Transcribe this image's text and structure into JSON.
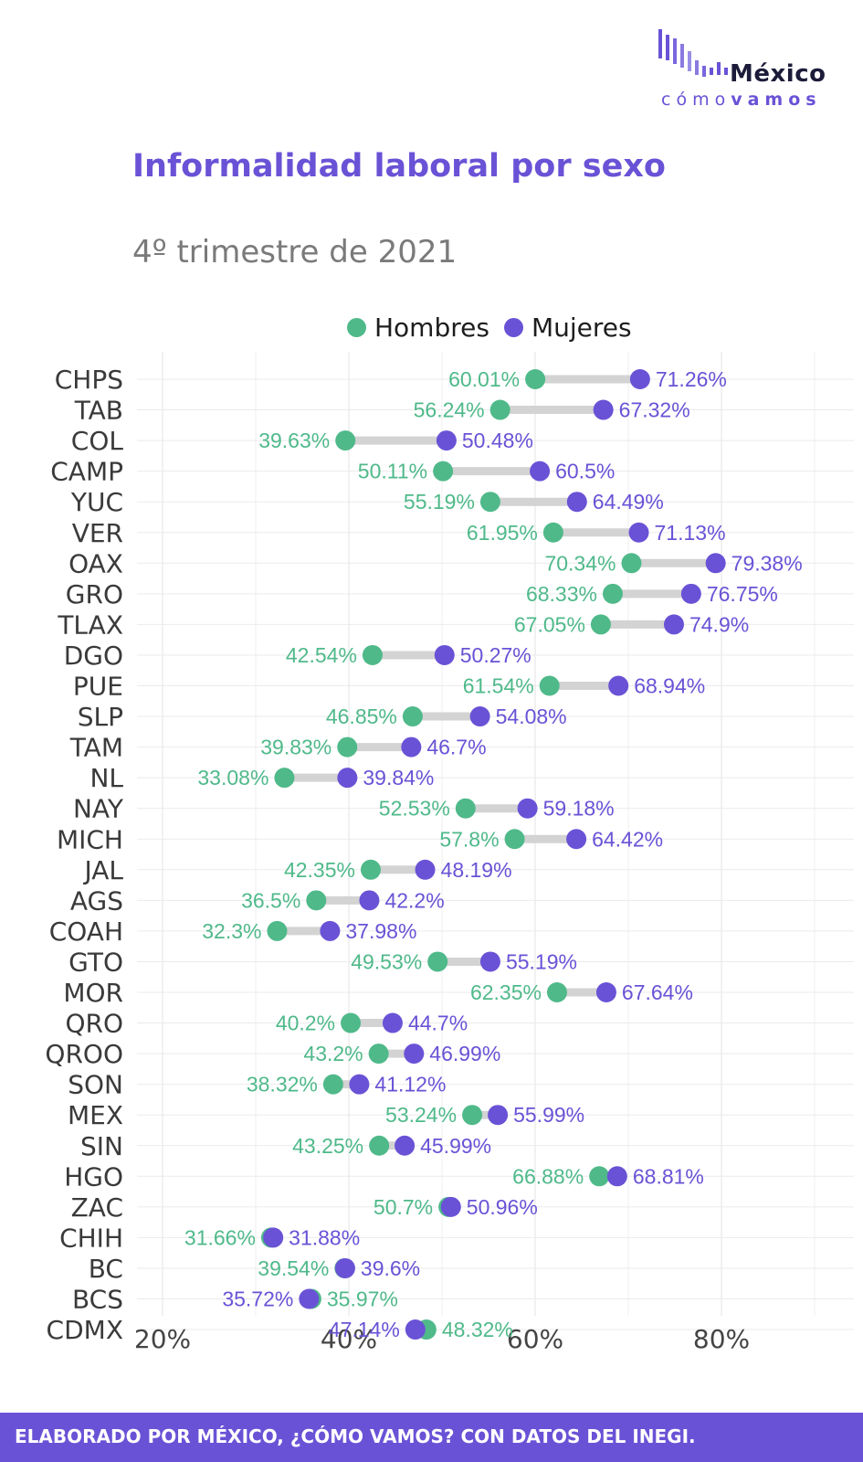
{
  "logo": {
    "name": "México",
    "sub_light": "cómo",
    "sub_bold": "vamos"
  },
  "colors": {
    "hombres": "#4fb98a",
    "mujeres": "#6a52d6",
    "segment": "#d3d3d3",
    "grid": "#ebebeb",
    "footer_bg": "#6a52d6"
  },
  "footer": {
    "text": "ELABORADO POR MÉXICO, ¿CÓMO VAMOS? CON DATOS DEL INEGI."
  },
  "chart_data": {
    "type": "dumbbell",
    "title": "Informalidad laboral por sexo",
    "subtitle": "4º trimestre de 2021",
    "xlim": [
      17,
      94
    ],
    "x_ticks": [
      20,
      40,
      60,
      80
    ],
    "x_tick_labels": [
      "20%",
      "40%",
      "60%",
      "80%"
    ],
    "grid": true,
    "legend": {
      "placement": "top",
      "entries": [
        "Hombres",
        "Mujeres"
      ]
    },
    "series": [
      {
        "name": "Hombres"
      },
      {
        "name": "Mujeres"
      }
    ],
    "categories": [
      "CHPS",
      "TAB",
      "COL",
      "CAMP",
      "YUC",
      "VER",
      "OAX",
      "GRO",
      "TLAX",
      "DGO",
      "PUE",
      "SLP",
      "TAM",
      "NL",
      "NAY",
      "MICH",
      "JAL",
      "AGS",
      "COAH",
      "GTO",
      "MOR",
      "QRO",
      "QROO",
      "SON",
      "MEX",
      "SIN",
      "HGO",
      "ZAC",
      "CHIH",
      "BC",
      "BCS",
      "CDMX"
    ],
    "hombres": [
      60.01,
      56.24,
      39.63,
      50.11,
      55.19,
      61.95,
      70.34,
      68.33,
      67.05,
      42.54,
      61.54,
      46.85,
      39.83,
      33.08,
      52.53,
      57.8,
      42.35,
      36.5,
      32.3,
      49.53,
      62.35,
      40.2,
      43.2,
      38.32,
      53.24,
      43.25,
      66.88,
      50.7,
      31.66,
      39.54,
      35.97,
      48.32
    ],
    "mujeres": [
      71.26,
      67.32,
      50.48,
      60.5,
      64.49,
      71.13,
      79.38,
      76.75,
      74.9,
      50.27,
      68.94,
      54.08,
      46.7,
      39.84,
      59.18,
      64.42,
      48.19,
      42.2,
      37.98,
      55.19,
      67.64,
      44.7,
      46.99,
      41.12,
      55.99,
      45.99,
      68.81,
      50.96,
      31.88,
      39.6,
      35.72,
      47.14
    ],
    "hombres_labels": [
      "60.01%",
      "56.24%",
      "39.63%",
      "50.11%",
      "55.19%",
      "61.95%",
      "70.34%",
      "68.33%",
      "67.05%",
      "42.54%",
      "61.54%",
      "46.85%",
      "39.83%",
      "33.08%",
      "52.53%",
      "57.8%",
      "42.35%",
      "36.5%",
      "32.3%",
      "49.53%",
      "62.35%",
      "40.2%",
      "43.2%",
      "38.32%",
      "53.24%",
      "43.25%",
      "66.88%",
      "50.7%",
      "31.66%",
      "39.54%",
      "35.97%",
      "48.32%"
    ],
    "mujeres_labels": [
      "71.26%",
      "67.32%",
      "50.48%",
      "60.5%",
      "64.49%",
      "71.13%",
      "79.38%",
      "76.75%",
      "74.9%",
      "50.27%",
      "68.94%",
      "54.08%",
      "46.7%",
      "39.84%",
      "59.18%",
      "64.42%",
      "48.19%",
      "42.2%",
      "37.98%",
      "55.19%",
      "67.64%",
      "44.7%",
      "46.99%",
      "41.12%",
      "55.99%",
      "45.99%",
      "68.81%",
      "50.96%",
      "31.88%",
      "39.6%",
      "35.72%",
      "47.14%"
    ]
  }
}
